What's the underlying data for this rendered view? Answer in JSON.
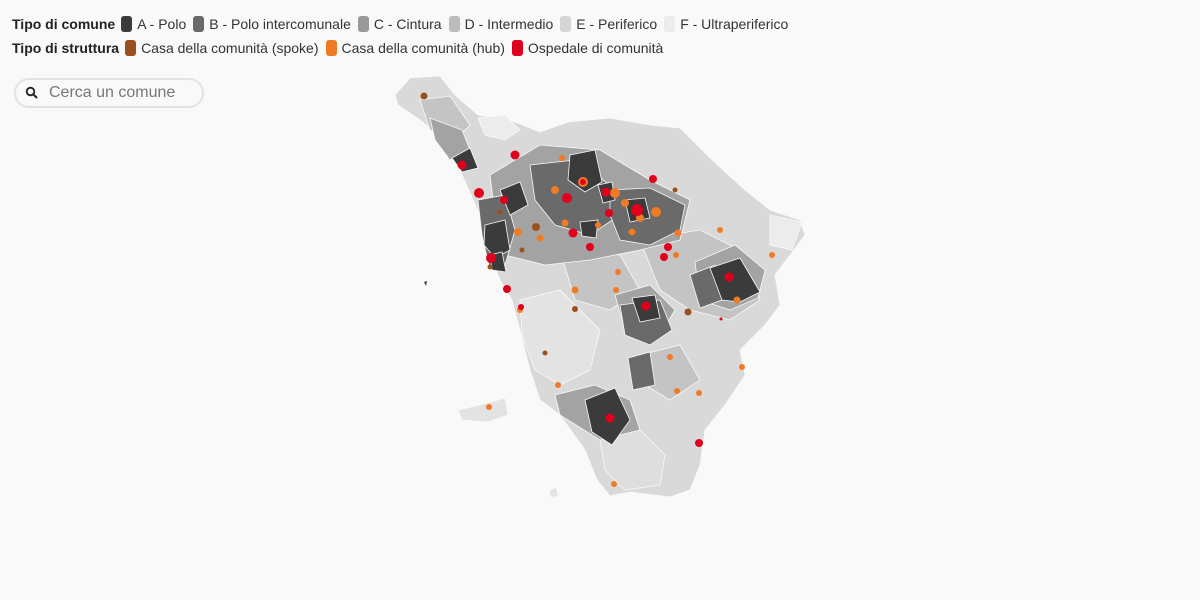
{
  "legend": {
    "comune_title": "Tipo di comune",
    "comune_types": [
      {
        "label": "A - Polo",
        "color": "#3b3b3b"
      },
      {
        "label": "B - Polo intercomunale",
        "color": "#6a6a6a"
      },
      {
        "label": "C - Cintura",
        "color": "#9a9a9a"
      },
      {
        "label": "D - Intermedio",
        "color": "#bcbcbc"
      },
      {
        "label": "E - Periferico",
        "color": "#d6d6d6"
      },
      {
        "label": "F - Ultraperiferico",
        "color": "#ececec"
      }
    ],
    "struttura_title": "Tipo di struttura",
    "struttura_types": [
      {
        "label": "Casa della comunità (spoke)",
        "color": "#9c4f1e"
      },
      {
        "label": "Casa della comunità (hub)",
        "color": "#ef7b26"
      },
      {
        "label": "Ospedale di comunità",
        "color": "#e0001b"
      }
    ]
  },
  "search": {
    "placeholder": "Cerca un comune",
    "icon": "search-icon"
  }
}
